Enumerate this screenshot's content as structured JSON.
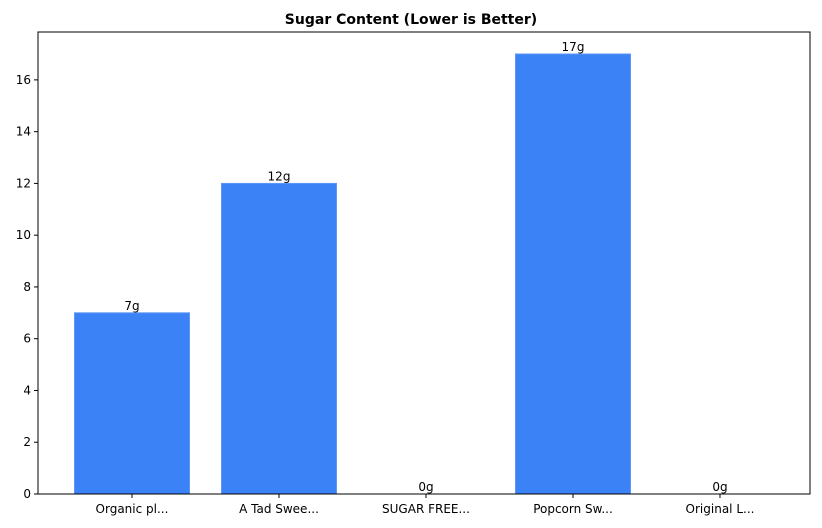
{
  "chart_data": {
    "type": "bar",
    "title": "Sugar Content (Lower is Better)",
    "xlabel": "",
    "ylabel": "",
    "categories": [
      "Organic pl...",
      "A Tad Swee...",
      "SUGAR FREE...",
      "Popcorn Sw...",
      "Original L..."
    ],
    "values": [
      7,
      12,
      0,
      17,
      0
    ],
    "data_labels": [
      "7g",
      "12g",
      "0g",
      "17g",
      "0g"
    ],
    "ylim": [
      0,
      17.85
    ],
    "yticks": [
      0,
      2,
      4,
      6,
      8,
      10,
      12,
      14,
      16
    ],
    "grid": false,
    "legend": "none",
    "colors": {
      "bar_fill": "#3b82f6",
      "bar_edge": "#5e97f7",
      "axis": "#000000",
      "text": "#000000"
    }
  }
}
